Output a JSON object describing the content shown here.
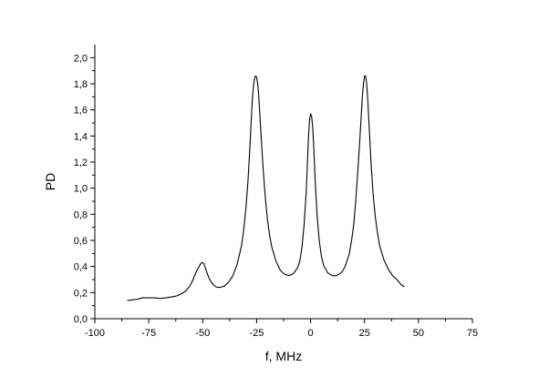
{
  "chart_data": {
    "type": "line",
    "title": "",
    "xlabel": "f, MHz",
    "ylabel": "PD",
    "xlim": [
      -100,
      75
    ],
    "ylim": [
      0,
      2.1
    ],
    "x_ticks": [
      -100,
      -75,
      -50,
      -25,
      0,
      25,
      50,
      75
    ],
    "x_tick_labels": [
      "-100",
      "-75",
      "-50",
      "-25",
      "0",
      "25",
      "50",
      "75"
    ],
    "y_ticks": [
      0,
      0.2,
      0.4,
      0.6,
      0.8,
      1.0,
      1.2,
      1.4,
      1.6,
      1.8,
      2.0
    ],
    "y_tick_labels": [
      "0,0",
      "0,2",
      "0,4",
      "0,6",
      "0,8",
      "1,0",
      "1,2",
      "1,4",
      "1,6",
      "1,8",
      "2,0"
    ],
    "grid": false,
    "legend": "none",
    "line_color": "#000000",
    "series": [
      {
        "x": [
          -85,
          -82,
          -80,
          -78,
          -75,
          -72,
          -70,
          -67,
          -65,
          -62,
          -60,
          -58,
          -56,
          -55,
          -54,
          -53,
          -52,
          -51,
          -50.5,
          -50,
          -49.5,
          -49,
          -48,
          -47,
          -46,
          -45,
          -44,
          -43,
          -42,
          -40,
          -38,
          -36,
          -34,
          -32,
          -31,
          -30,
          -29,
          -28,
          -27.5,
          -27,
          -26.5,
          -26,
          -25.5,
          -25,
          -24.5,
          -24,
          -23.5,
          -23,
          -22,
          -21,
          -20,
          -19,
          -18,
          -16,
          -14,
          -12,
          -10,
          -8,
          -6,
          -5,
          -4,
          -3,
          -2,
          -1.5,
          -1,
          -0.5,
          0,
          0.5,
          1,
          1.5,
          2,
          3,
          4,
          5,
          6,
          8,
          10,
          12,
          14,
          15,
          16,
          18,
          19,
          20,
          21,
          22,
          23,
          23.5,
          24,
          24.5,
          25,
          25.5,
          26,
          26.5,
          27,
          27.5,
          28,
          29,
          30,
          31,
          32,
          34,
          36,
          38,
          40,
          42,
          43.5
        ],
        "values": [
          0.14,
          0.145,
          0.15,
          0.16,
          0.16,
          0.16,
          0.155,
          0.16,
          0.165,
          0.175,
          0.19,
          0.21,
          0.25,
          0.28,
          0.32,
          0.36,
          0.39,
          0.42,
          0.43,
          0.43,
          0.42,
          0.4,
          0.35,
          0.31,
          0.28,
          0.26,
          0.245,
          0.24,
          0.24,
          0.25,
          0.28,
          0.33,
          0.42,
          0.56,
          0.68,
          0.84,
          1.06,
          1.35,
          1.52,
          1.68,
          1.78,
          1.84,
          1.86,
          1.85,
          1.8,
          1.7,
          1.56,
          1.42,
          1.15,
          0.93,
          0.76,
          0.64,
          0.55,
          0.44,
          0.37,
          0.34,
          0.33,
          0.345,
          0.39,
          0.44,
          0.55,
          0.72,
          0.98,
          1.18,
          1.38,
          1.52,
          1.57,
          1.55,
          1.46,
          1.3,
          1.1,
          0.8,
          0.6,
          0.48,
          0.41,
          0.35,
          0.33,
          0.33,
          0.35,
          0.37,
          0.4,
          0.5,
          0.6,
          0.72,
          0.92,
          1.16,
          1.42,
          1.56,
          1.7,
          1.8,
          1.86,
          1.86,
          1.8,
          1.68,
          1.52,
          1.36,
          1.2,
          0.95,
          0.78,
          0.66,
          0.56,
          0.45,
          0.38,
          0.33,
          0.3,
          0.26,
          0.245
        ]
      }
    ]
  }
}
